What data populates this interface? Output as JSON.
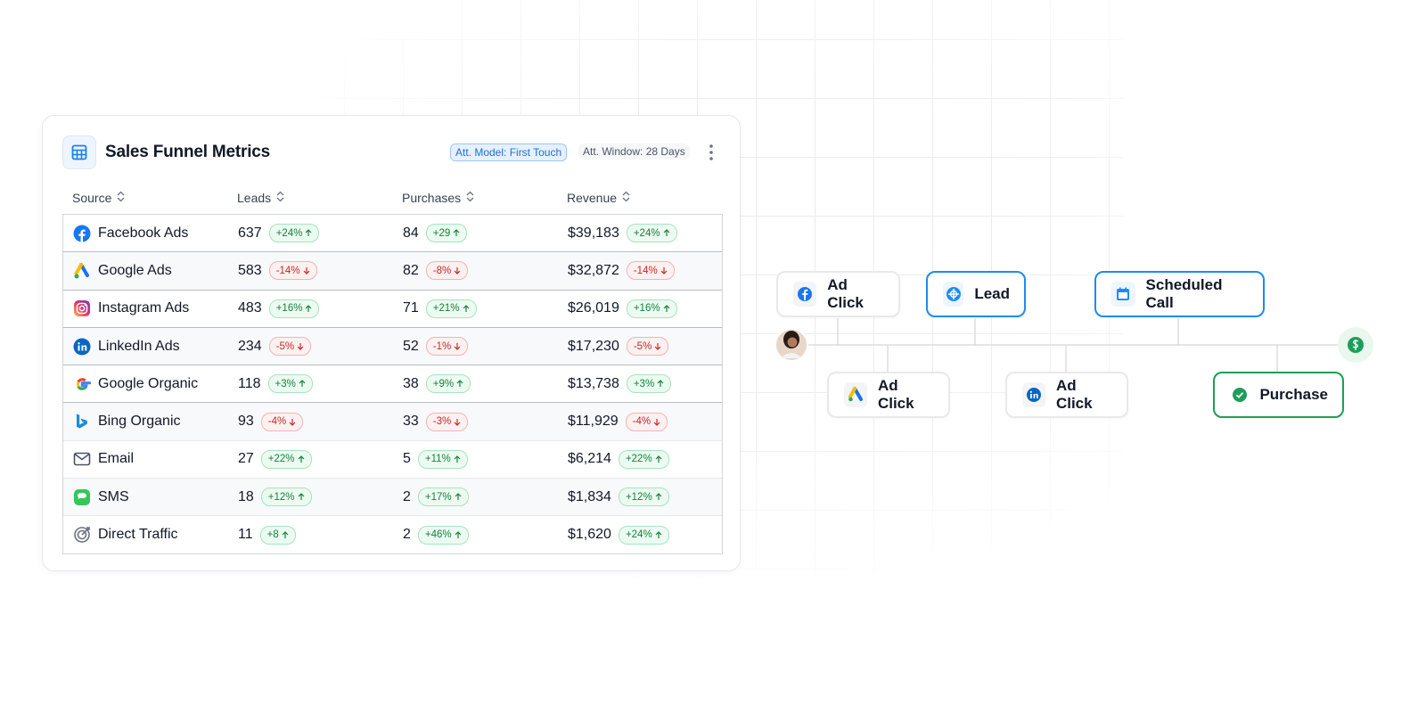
{
  "card": {
    "title": "Sales Funnel Metrics",
    "badges": [
      "Att. Model: First Touch",
      "Att. Window: 28 Days"
    ]
  },
  "table": {
    "headers": [
      "Source",
      "Leads",
      "Purchases",
      "Revenue"
    ],
    "rows": [
      [
        "Facebook Ads",
        "637",
        "+24%",
        "84",
        "+29",
        "$39,183",
        "+24%"
      ],
      [
        "Google Ads",
        "583",
        "-14%",
        "82",
        "-8%",
        "$32,872",
        "-14%"
      ],
      [
        "Instagram Ads",
        "483",
        "+16%",
        "71",
        "+21%",
        "$26,019",
        "+16%"
      ],
      [
        "LinkedIn Ads",
        "234",
        "-5%",
        "52",
        "-1%",
        "$17,230",
        "-5%"
      ],
      [
        "Google Organic",
        "118",
        "+3%",
        "38",
        "+9%",
        "$13,738",
        "+3%"
      ],
      [
        "Bing Organic",
        "93",
        "-4%",
        "33",
        "-3%",
        "$11,929",
        "-4%"
      ],
      [
        "Email",
        "27",
        "+22%",
        "5",
        "+11%",
        "$6,214",
        "+22%"
      ],
      [
        "SMS",
        "18",
        "+12%",
        "2",
        "+17%",
        "$1,834",
        "+12%"
      ],
      [
        "Direct Traffic",
        "11",
        "+8",
        "2",
        "+46%",
        "$1,620",
        "+24%"
      ]
    ]
  },
  "journey": {
    "nodes": [
      {
        "label": "Ad Click"
      },
      {
        "label": "Lead"
      },
      {
        "label": "Scheduled Call"
      },
      {
        "label": "Ad Click"
      },
      {
        "label": "Ad Click"
      },
      {
        "label": "Purchase"
      }
    ]
  }
}
